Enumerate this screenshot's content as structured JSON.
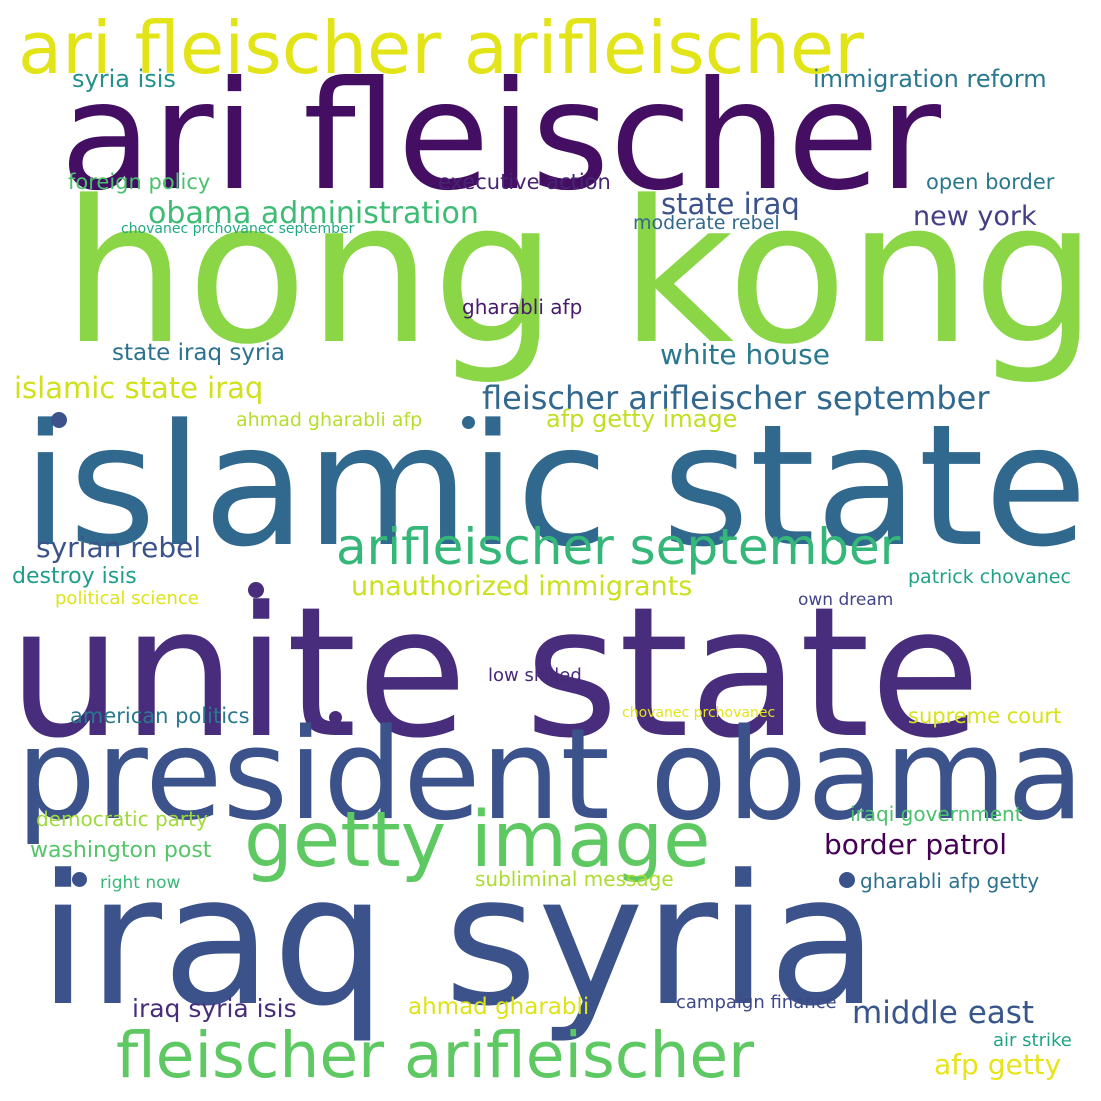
{
  "words": [
    {
      "text": "ari fleischer arifleischer",
      "color": "#e2e418"
    },
    {
      "text": "ari fleischer",
      "color": "#440f62"
    },
    {
      "text": "hong kong",
      "color": "#8ad647"
    },
    {
      "text": "islamic state",
      "color": "#31688e"
    },
    {
      "text": "unite state",
      "color": "#472d7b"
    },
    {
      "text": "president obama",
      "color": "#3b528b"
    },
    {
      "text": "iraq syria",
      "color": "#3b528b"
    },
    {
      "text": "getty image",
      "color": "#5ec962"
    },
    {
      "text": "fleischer arifleischer",
      "color": "#5ec962"
    },
    {
      "text": "arifleischer september",
      "color": "#35b779"
    },
    {
      "text": "syria isis",
      "color": "#21918c"
    },
    {
      "text": "immigration reform",
      "color": "#2a788e"
    },
    {
      "text": "foreign policy",
      "color": "#4ac16d"
    },
    {
      "text": "executive action",
      "color": "#482374"
    },
    {
      "text": "open border",
      "color": "#2a788e"
    },
    {
      "text": "obama administration",
      "color": "#3dbc74"
    },
    {
      "text": "state iraq",
      "color": "#3b528b"
    },
    {
      "text": "chovanec prchovanec september",
      "color": "#22a884"
    },
    {
      "text": "moderate rebel",
      "color": "#31688e"
    },
    {
      "text": "new york",
      "color": "#433e85"
    },
    {
      "text": "gharabli afp",
      "color": "#481a6c"
    },
    {
      "text": "state iraq syria",
      "color": "#2c728e"
    },
    {
      "text": "white house",
      "color": "#2a788e"
    },
    {
      "text": "islamic state iraq",
      "color": "#d0e11c"
    },
    {
      "text": "fleischer arifleischer september",
      "color": "#31688e"
    },
    {
      "text": "ahmad gharabli afp",
      "color": "#b5de2b"
    },
    {
      "text": "afp getty image",
      "color": "#c2df23"
    },
    {
      "text": "syrian rebel",
      "color": "#3b528b"
    },
    {
      "text": "unauthorized immigrants",
      "color": "#cae11f"
    },
    {
      "text": "destroy isis",
      "color": "#1f9e89"
    },
    {
      "text": "patrick chovanec",
      "color": "#1fa188"
    },
    {
      "text": "political science",
      "color": "#dde318"
    },
    {
      "text": "own dream",
      "color": "#414487"
    },
    {
      "text": "low skilled",
      "color": "#482878"
    },
    {
      "text": "american politics",
      "color": "#2a788e"
    },
    {
      "text": "chovanec prchovanec",
      "color": "#e5e419"
    },
    {
      "text": "supreme court",
      "color": "#d8e219"
    },
    {
      "text": "democratic party",
      "color": "#9fda3a"
    },
    {
      "text": "iraqi government",
      "color": "#4ac16d"
    },
    {
      "text": "washington post",
      "color": "#54c568"
    },
    {
      "text": "border patrol",
      "color": "#440154"
    },
    {
      "text": "right now",
      "color": "#38b977"
    },
    {
      "text": "subliminal message",
      "color": "#addc30"
    },
    {
      "text": "gharabli afp getty",
      "color": "#2c728e"
    },
    {
      "text": "iraq syria isis",
      "color": "#472c7a"
    },
    {
      "text": "ahmad gharabli",
      "color": "#dde318"
    },
    {
      "text": "campaign finance",
      "color": "#3e4989"
    },
    {
      "text": "middle east",
      "color": "#39568c"
    },
    {
      "text": "air strike",
      "color": "#20a486"
    },
    {
      "text": "afp getty",
      "color": "#e7e419"
    }
  ],
  "dots": [
    {
      "name": "dot-1",
      "color": "#3b528b"
    },
    {
      "name": "dot-2",
      "color": "#31688e"
    },
    {
      "name": "dot-3",
      "color": "#472d7b"
    },
    {
      "name": "dot-4",
      "color": "#472d7b"
    },
    {
      "name": "dot-5",
      "color": "#3b528b"
    },
    {
      "name": "dot-6",
      "color": "#3b528b"
    }
  ]
}
